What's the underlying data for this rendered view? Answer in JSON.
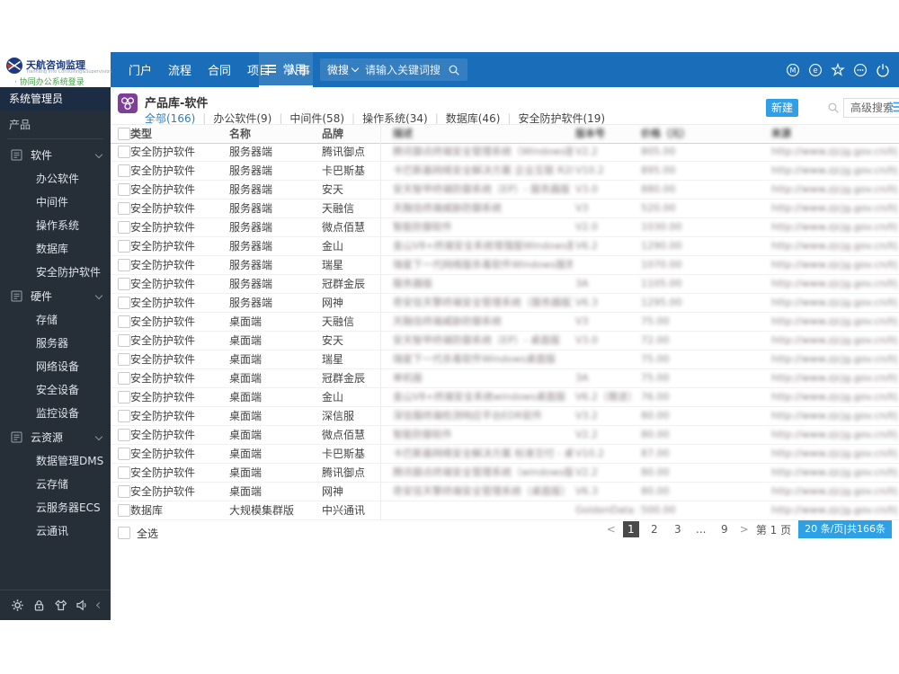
{
  "header": {
    "logo": {
      "title": "天航咨询监理",
      "subtitle": "Tianhang Info Consulting&Supervision",
      "login_link": "· 协同办公系统登录"
    },
    "nav": [
      "门户",
      "流程",
      "合同",
      "项目",
      "人事"
    ],
    "more_label": "常用",
    "wesearch_label": "微搜",
    "search_placeholder": "请输入关键词搜",
    "right_icons": [
      "m-badge",
      "message",
      "favorite",
      "more",
      "power"
    ]
  },
  "sidebar": {
    "role": "系统管理员",
    "section": "产品",
    "groups": [
      {
        "label": "软件",
        "children": [
          "办公软件",
          "中间件",
          "操作系统",
          "数据库",
          "安全防护软件"
        ]
      },
      {
        "label": "硬件",
        "children": [
          "存储",
          "服务器",
          "网络设备",
          "安全设备",
          "监控设备"
        ]
      },
      {
        "label": "云资源",
        "children": [
          "数据管理DMS",
          "云存储",
          "云服务器ECS",
          "云通讯"
        ]
      }
    ],
    "footer_icons": [
      "settings",
      "lock",
      "theme",
      "sound",
      "collapse"
    ]
  },
  "main": {
    "title": "产品库-软件",
    "tabs": [
      {
        "label": "全部(166)",
        "active": true
      },
      {
        "label": "办公软件(9)",
        "active": false
      },
      {
        "label": "中间件(58)",
        "active": false
      },
      {
        "label": "操作系统(34)",
        "active": false
      },
      {
        "label": "数据库(46)",
        "active": false
      },
      {
        "label": "安全防护软件(19)",
        "active": false
      }
    ],
    "new_button": "新建",
    "advanced_search": "高级搜索",
    "table": {
      "columns": [
        {
          "label": "类型",
          "blurred": false
        },
        {
          "label": "名称",
          "blurred": false
        },
        {
          "label": "品牌",
          "blurred": false
        },
        {
          "label": "描述",
          "blurred": true
        },
        {
          "label": "版本号",
          "blurred": true
        },
        {
          "label": "价格（元）",
          "blurred": true
        },
        {
          "label": "来源",
          "blurred": true
        }
      ],
      "rows": [
        {
          "type": "安全防护软件",
          "name": "服务器端",
          "brand": "腾讯御点",
          "desc": "腾讯御点终端安全管理系统（Windows版）",
          "version": "V2.2",
          "price": "805.00",
          "source": "http://www.zjcjg.gov.cn/tljsg/"
        },
        {
          "type": "安全防护软件",
          "name": "服务器端",
          "brand": "卡巴斯基",
          "desc": "卡巴斯基网络安全解决方案 企业互联 R2级安",
          "version": "V10.2",
          "price": "895.00",
          "source": "http://www.zjcjg.gov.cn/tljsg/"
        },
        {
          "type": "安全防护软件",
          "name": "服务器端",
          "brand": "安天",
          "desc": "安天智甲终端防御系统（EP）- 服务器版",
          "version": "V3.0",
          "price": "880.00",
          "source": "http://www.zjcjg.gov.cn/tljsg/"
        },
        {
          "type": "安全防护软件",
          "name": "服务器端",
          "brand": "天融信",
          "desc": "天融信终端威胁防御系统",
          "version": "V3",
          "price": "520.00",
          "source": "http://www.zjcjg.gov.cn/tljsg/"
        },
        {
          "type": "安全防护软件",
          "name": "服务器端",
          "brand": "微点佰慧",
          "desc": "智能防御软件",
          "version": "V2.0",
          "price": "1030.00",
          "source": "http://www.zjcjg.gov.cn/tljsg/"
        },
        {
          "type": "安全防护软件",
          "name": "服务器端",
          "brand": "金山",
          "desc": "金山V8+终端安全系统增强版Windows服务器",
          "version": "V6.2",
          "price": "1290.00",
          "source": "http://www.zjcjg.gov.cn/tljsg/"
        },
        {
          "type": "安全防护软件",
          "name": "服务器端",
          "brand": "瑞星",
          "desc": "瑞星下一代网络版杀毒软件Windows服务版",
          "version": "",
          "price": "1070.00",
          "source": "http://www.zjcjg.gov.cn/tljsg/"
        },
        {
          "type": "安全防护软件",
          "name": "服务器端",
          "brand": "冠群金辰",
          "desc": "服务器版",
          "version": "3A",
          "price": "1105.00",
          "source": "http://www.zjcjg.gov.cn/tljsg/"
        },
        {
          "type": "安全防护软件",
          "name": "服务器端",
          "brand": "网神",
          "desc": "奇安信天擎终端安全管理系统（服务器版）",
          "version": "V6.3",
          "price": "1295.00",
          "source": "http://www.zjcjg.gov.cn/tljsg/"
        },
        {
          "type": "安全防护软件",
          "name": "桌面端",
          "brand": "天融信",
          "desc": "天融信终端威胁防御系统",
          "version": "V3",
          "price": "75.00",
          "source": "http://www.zjcjg.gov.cn/tljsg/"
        },
        {
          "type": "安全防护软件",
          "name": "桌面端",
          "brand": "安天",
          "desc": "安天智甲终端防御系统（EP）- 桌面版",
          "version": "V3.0",
          "price": "72.00",
          "source": "http://www.zjcjg.gov.cn/tljsg/"
        },
        {
          "type": "安全防护软件",
          "name": "桌面端",
          "brand": "瑞星",
          "desc": "瑞星下一代杀毒软件Windows桌面版",
          "version": "",
          "price": "75.00",
          "source": "http://www.zjcjg.gov.cn/tljsg/"
        },
        {
          "type": "安全防护软件",
          "name": "桌面端",
          "brand": "冠群金辰",
          "desc": "单机版",
          "version": "3A",
          "price": "75.00",
          "source": "http://www.zjcjg.gov.cn/tljsg/"
        },
        {
          "type": "安全防护软件",
          "name": "桌面端",
          "brand": "金山",
          "desc": "金山V8+终端安全系统windows桌面版",
          "version": "V6.2（赠送）",
          "price": "76.00",
          "source": "http://www.zjcjg.gov.cn/tljsg/"
        },
        {
          "type": "安全防护软件",
          "name": "桌面端",
          "brand": "深信服",
          "desc": "深信服终端检测响应平台EDR软件",
          "version": "V3.2",
          "price": "80.00",
          "source": "http://www.zjcjg.gov.cn/tljsg/"
        },
        {
          "type": "安全防护软件",
          "name": "桌面端",
          "brand": "微点佰慧",
          "desc": "智能防御软件",
          "version": "V2.2",
          "price": "80.00",
          "source": "http://www.zjcjg.gov.cn/tljsg/"
        },
        {
          "type": "安全防护软件",
          "name": "桌面端",
          "brand": "卡巴斯基",
          "desc": "卡巴斯基网络安全解决方案 标准交付 - 桌面",
          "version": "V10.2",
          "price": "87.00",
          "source": "http://www.zjcjg.gov.cn/tljsg/"
        },
        {
          "type": "安全防护软件",
          "name": "桌面端",
          "brand": "腾讯御点",
          "desc": "腾讯御点终端安全管理系统（windows版）V2.2",
          "version": "V2.2",
          "price": "80.00",
          "source": "http://www.zjcjg.gov.cn/tljsg/"
        },
        {
          "type": "安全防护软件",
          "name": "桌面端",
          "brand": "网神",
          "desc": "奇安信天擎终端安全管理系统（桌面版）",
          "version": "V6.3",
          "price": "80.00",
          "source": "http://www.zjcjg.gov.cn/tljsg/"
        },
        {
          "type": "数据库",
          "name": "大规模集群版",
          "brand": "中兴通讯",
          "desc": "",
          "version": "GoldenData s...",
          "price": "500.00",
          "source": "http://www.zjcjg.gov.cn/tljsg/"
        }
      ],
      "select_all": "全选"
    },
    "pagination": {
      "prev": "<",
      "pages": [
        "1",
        "2",
        "3",
        "...",
        "9"
      ],
      "current": "1",
      "next": ">",
      "jump": "第 1 页",
      "page_size": "20 条/页|共166条"
    }
  },
  "colors": {
    "header_blue": "#1a6db8",
    "accent_blue": "#2e9fe8",
    "sidebar_dark": "#262e38",
    "role_bar": "#1c2c42",
    "active_page_bg": "#4a4a4a",
    "link_green": "#3f9e45",
    "brand_purple": "#7d3f98"
  }
}
